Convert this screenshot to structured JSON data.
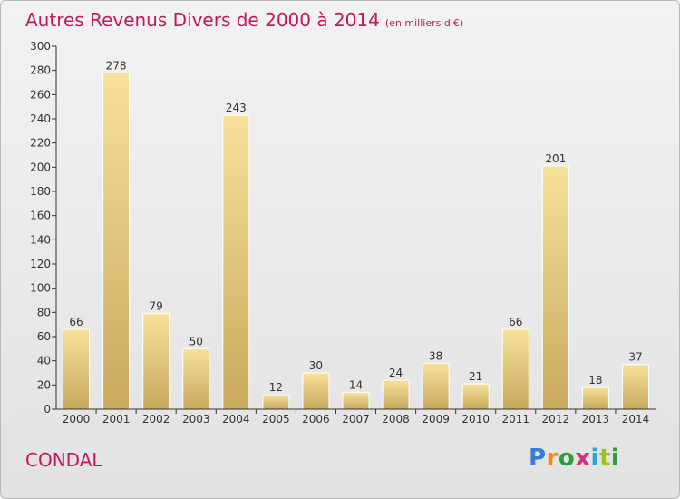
{
  "header": {
    "title": "Autres Revenus Divers de 2000 à 2014",
    "unit": "(en milliers d'€)"
  },
  "commune": "CONDAL",
  "logo": {
    "letters": [
      "P",
      "r",
      "o",
      "x",
      "i",
      "t",
      "i"
    ]
  },
  "colors": {
    "title": "#c2185b",
    "bar_top": "#f7e19a",
    "bar_bottom": "#c8a95e",
    "axis": "#333333"
  },
  "chart_data": {
    "type": "bar",
    "title": "Autres Revenus Divers de 2000 à 2014",
    "xlabel": "",
    "ylabel": "",
    "ylim": [
      0,
      300
    ],
    "yticks": [
      0,
      20,
      40,
      60,
      80,
      100,
      120,
      140,
      160,
      180,
      200,
      220,
      240,
      260,
      280,
      300
    ],
    "grid": false,
    "categories": [
      "2000",
      "2001",
      "2002",
      "2003",
      "2004",
      "2005",
      "2006",
      "2007",
      "2008",
      "2009",
      "2010",
      "2011",
      "2012",
      "2013",
      "2014"
    ],
    "values": [
      66,
      278,
      79,
      50,
      243,
      12,
      30,
      14,
      24,
      38,
      21,
      66,
      201,
      18,
      37
    ]
  }
}
